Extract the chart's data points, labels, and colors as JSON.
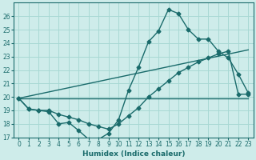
{
  "xlabel": "Humidex (Indice chaleur)",
  "background_color": "#ceecea",
  "grid_color": "#a8d8d4",
  "line_color": "#1a6b6b",
  "xlim": [
    -0.5,
    23.5
  ],
  "ylim": [
    17,
    27
  ],
  "yticks": [
    17,
    18,
    19,
    20,
    21,
    22,
    23,
    24,
    25,
    26
  ],
  "xticks": [
    0,
    1,
    2,
    3,
    4,
    5,
    6,
    7,
    8,
    9,
    10,
    11,
    12,
    13,
    14,
    15,
    16,
    17,
    18,
    19,
    20,
    21,
    22,
    23
  ],
  "series1_x": [
    0,
    1,
    2,
    3,
    4,
    5,
    6,
    7,
    8,
    9,
    10,
    11,
    12,
    13,
    14,
    15,
    16,
    17,
    18,
    19,
    20,
    21,
    22,
    23
  ],
  "series1_y": [
    19.9,
    19.1,
    19.0,
    18.9,
    18.0,
    18.1,
    17.5,
    16.85,
    16.85,
    17.3,
    18.3,
    20.5,
    22.2,
    24.1,
    24.9,
    26.5,
    26.2,
    25.0,
    24.3,
    24.3,
    23.4,
    22.9,
    21.7,
    20.3
  ],
  "series2_x": [
    0,
    1,
    2,
    3,
    4,
    5,
    6,
    7,
    8,
    9,
    10,
    11,
    12,
    13,
    14,
    15,
    16,
    17,
    18,
    19,
    20,
    21,
    22,
    23
  ],
  "series2_y": [
    19.9,
    19.1,
    19.0,
    19.0,
    18.7,
    18.5,
    18.3,
    18.0,
    17.8,
    17.6,
    18.0,
    18.6,
    19.2,
    20.0,
    20.6,
    21.2,
    21.8,
    22.2,
    22.6,
    22.9,
    23.2,
    23.4,
    20.2,
    20.2
  ],
  "line3_x": [
    0,
    23
  ],
  "line3_y": [
    19.9,
    19.9
  ],
  "line4_x": [
    0,
    23
  ],
  "line4_y": [
    19.9,
    23.5
  ]
}
